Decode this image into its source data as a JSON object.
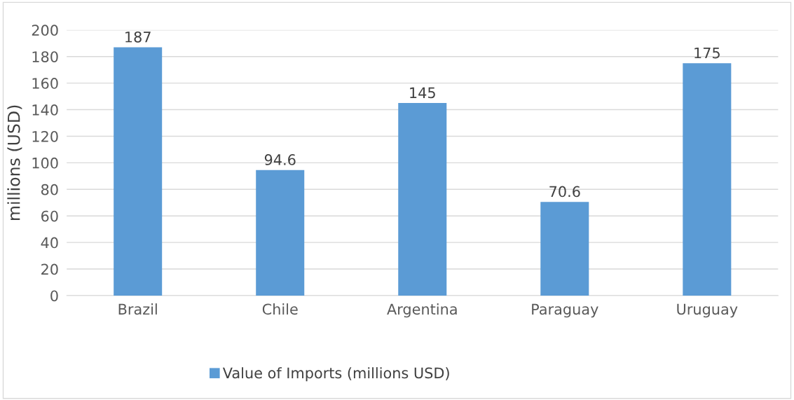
{
  "chart_data": {
    "type": "bar",
    "ylabel": "millions (USD)",
    "categories": [
      "Brazil",
      "Chile",
      "Argentina",
      "Paraguay",
      "Uruguay"
    ],
    "series": [
      {
        "name": "Value of Imports (millions USD)",
        "color": "#5b9bd5",
        "values": [
          187,
          94.6,
          145,
          70.6,
          175
        ]
      }
    ],
    "ylim": [
      0,
      200
    ],
    "yticks": [
      0,
      20,
      40,
      60,
      80,
      100,
      120,
      140,
      160,
      180,
      200
    ],
    "grid": "y",
    "legend": "bottom",
    "data_labels": true
  }
}
